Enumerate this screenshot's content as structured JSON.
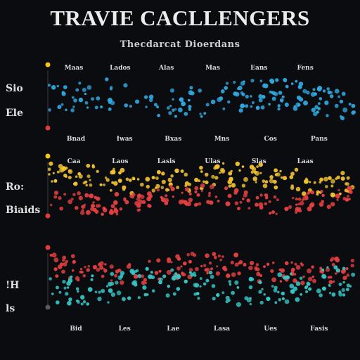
{
  "header": {
    "title": "TRAVIE CACLLENGERS",
    "subtitle": "Thecdarcat Dioerdans"
  },
  "chart_data": [
    {
      "type": "scatter",
      "panel_id": "top",
      "x_tick_labels_top": [
        "Maas",
        "Lados",
        "Alas",
        "Mas",
        "Eans",
        "Fens"
      ],
      "x_tick_labels_bottom": [
        "Bnad",
        "Iwas",
        "Bxas",
        "Mns",
        "Cos",
        "Pans"
      ],
      "y_labels": [
        "Sio",
        "Ele"
      ],
      "xlim": [
        0,
        100
      ],
      "ylim": [
        0,
        10
      ],
      "series": [
        {
          "color": "#2fa8e0",
          "band": [
            2.2,
            7.8
          ]
        }
      ],
      "marker_colors": [
        "#f5c518",
        "#e03a3a"
      ]
    },
    {
      "type": "scatter",
      "panel_id": "middle",
      "x_tick_labels_top": [
        "Caa",
        "Laos",
        "Lasis",
        "Ulas",
        "Slas",
        "Laas"
      ],
      "y_labels": [
        "Ro:",
        "Biaids"
      ],
      "xlim": [
        0,
        100
      ],
      "ylim": [
        0,
        10
      ],
      "series": [
        {
          "color": "#f2c231",
          "band": [
            4.5,
            9.0
          ]
        },
        {
          "color": "#e3403f",
          "band": [
            0.8,
            4.8
          ]
        }
      ],
      "marker_colors": [
        "#f5c518",
        "#e03a3a"
      ]
    },
    {
      "type": "scatter",
      "panel_id": "bottom",
      "x_tick_labels_bottom": [
        "Bid",
        "Les",
        "Lae",
        "Lasa",
        "Ues",
        "Fasis"
      ],
      "y_labels": [
        "!H",
        "ls"
      ],
      "xlim": [
        0,
        100
      ],
      "ylim": [
        0,
        10
      ],
      "series": [
        {
          "color": "#e3403f",
          "band": [
            4.8,
            9.2
          ]
        },
        {
          "color": "#37c7c7",
          "band": [
            1.0,
            6.5
          ]
        }
      ],
      "marker_colors": [
        "#e03a3a",
        "#5a5a5a"
      ]
    }
  ]
}
